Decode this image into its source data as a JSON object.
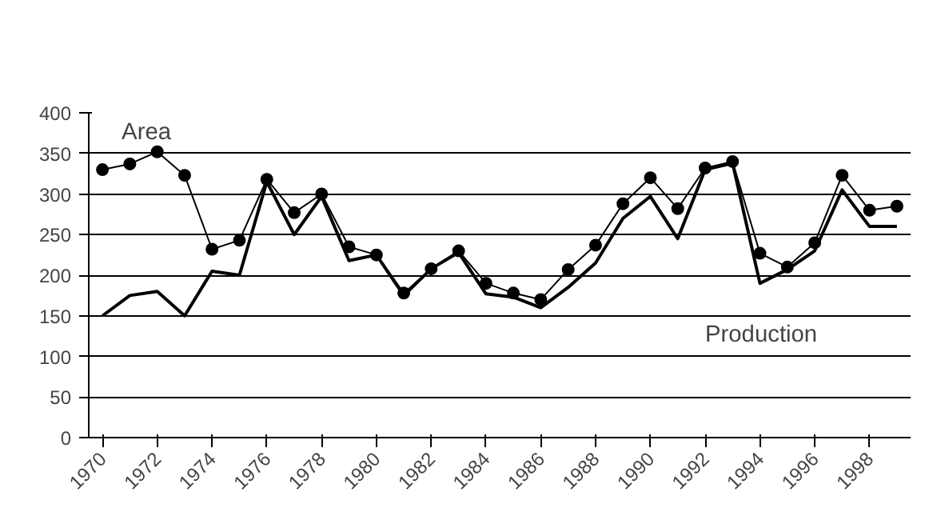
{
  "chart_data": {
    "type": "line",
    "categories": [
      "1970",
      null,
      "1972",
      null,
      "1974",
      null,
      "1976",
      null,
      "1978",
      null,
      "1980",
      null,
      "1982",
      null,
      "1984",
      null,
      "1986",
      null,
      "1988",
      null,
      "1990",
      null,
      "1992",
      null,
      "1994",
      null,
      "1996",
      null,
      "1998",
      null
    ],
    "series": [
      {
        "name": "Area",
        "color": "#000000",
        "marker": "circle",
        "values": [
          330,
          337,
          352,
          323,
          232,
          243,
          318,
          277,
          300,
          235,
          225,
          178,
          208,
          230,
          190,
          178,
          170,
          207,
          237,
          288,
          320,
          282,
          332,
          340,
          227,
          210,
          240,
          323,
          280,
          285
        ]
      },
      {
        "name": "Production",
        "color": "#000000",
        "marker": "none",
        "values": [
          150,
          175,
          180,
          150,
          205,
          200,
          315,
          250,
          297,
          218,
          225,
          175,
          208,
          228,
          177,
          173,
          160,
          185,
          215,
          270,
          297,
          245,
          330,
          338,
          190,
          207,
          230,
          305,
          260,
          260
        ]
      }
    ],
    "ylim": [
      0,
      400
    ],
    "yticks": [
      0,
      50,
      100,
      150,
      200,
      250,
      300,
      350,
      400
    ],
    "grid": "y"
  }
}
